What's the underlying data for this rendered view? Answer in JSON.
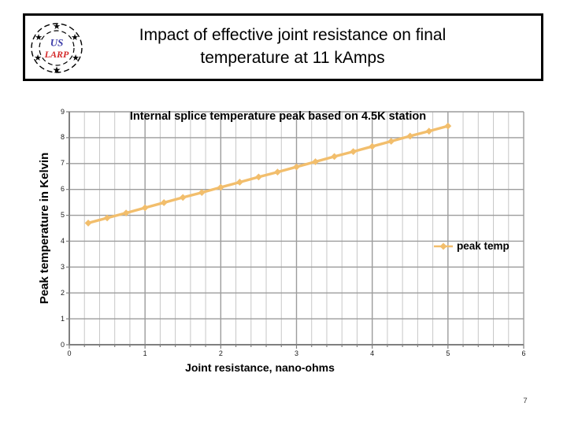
{
  "header": {
    "title_line1": "Impact of effective joint resistance on final",
    "title_line2": "temperature at 11 kAmps",
    "logo": {
      "top_text": "US",
      "bottom_text": "LARP"
    }
  },
  "icons": {
    "star": "★"
  },
  "footer": {
    "page_number": "7"
  },
  "colors": {
    "series_line": "#F2BE6C",
    "gridline_major": "#9C9C9C",
    "gridline_minor": "#C7C7C7",
    "axis": "#7F7F7F",
    "logo_us": "#3B3BA8",
    "logo_larp": "#D42A2A"
  },
  "chart_data": {
    "type": "line",
    "title": "Internal splice temperature peak based on 4.5K station",
    "xlabel": "Joint resistance, nano-ohms",
    "ylabel": "Peak temperature in Kelvin",
    "xlim": [
      0,
      6
    ],
    "ylim": [
      0,
      9
    ],
    "x_ticks": [
      0,
      1,
      2,
      3,
      4,
      5,
      6
    ],
    "y_ticks": [
      0,
      1,
      2,
      3,
      4,
      5,
      6,
      7,
      8,
      9
    ],
    "x_minor_step": 0.2,
    "grid": "horizontal major every 1; vertical minor every 0.2 and major every 1",
    "legend_position": "inside right, near y=4",
    "series": [
      {
        "name": "peak temp",
        "color": "#F2BE6C",
        "marker": "diamond",
        "x": [
          0.25,
          0.5,
          0.75,
          1.0,
          1.25,
          1.5,
          1.75,
          2.0,
          2.25,
          2.5,
          2.75,
          3.0,
          3.25,
          3.5,
          3.75,
          4.0,
          4.25,
          4.5,
          4.75,
          5.0
        ],
        "y": [
          4.7,
          4.9,
          5.09,
          5.29,
          5.49,
          5.69,
          5.88,
          6.08,
          6.28,
          6.48,
          6.67,
          6.87,
          7.07,
          7.27,
          7.46,
          7.66,
          7.86,
          8.06,
          8.25,
          8.45
        ]
      }
    ]
  }
}
